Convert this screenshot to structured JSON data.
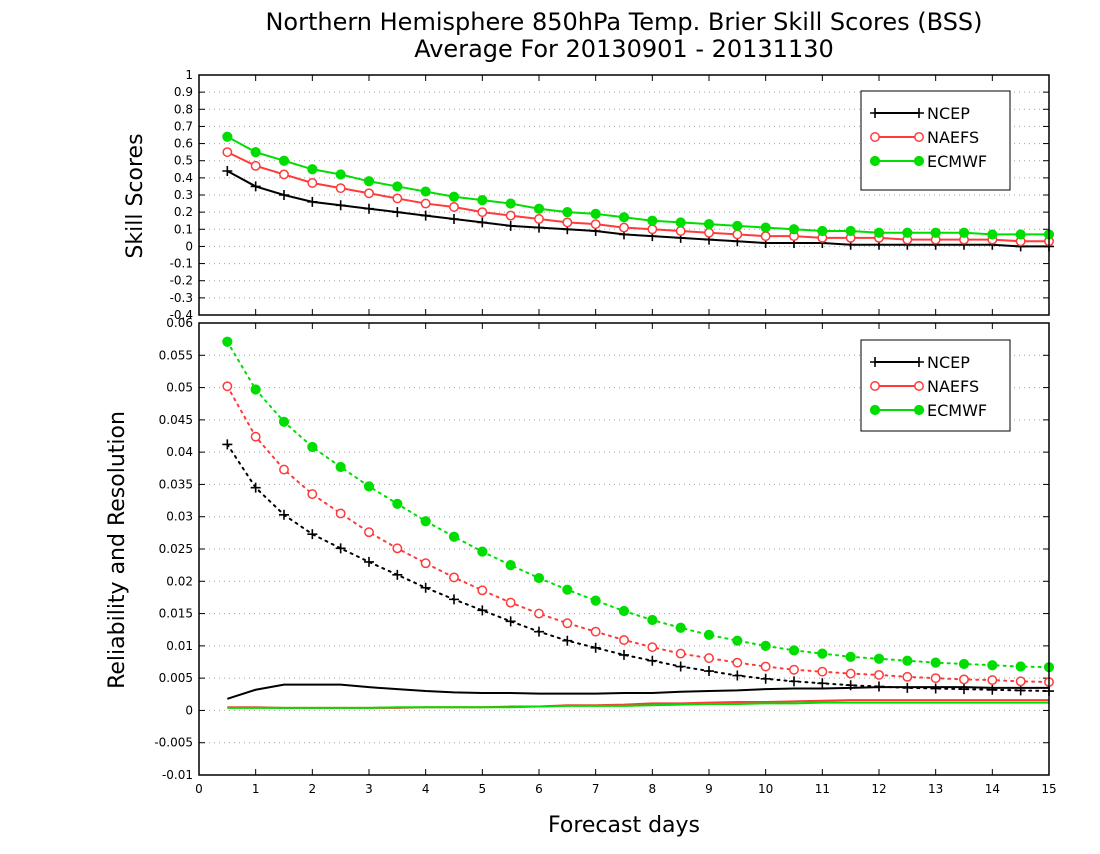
{
  "figure": {
    "title_line1": "Northern Hemisphere 850hPa Temp. Brier Skill Scores (BSS)",
    "title_line2": "Average For 20130901 - 20131130",
    "xlabel": "Forecast days"
  },
  "colors": {
    "NCEP": "#000000",
    "NAEFS": "#ff3a3a",
    "ECMWF": "#00dd00"
  },
  "chart_data": [
    {
      "type": "line",
      "ylabel": "Skill Scores",
      "xlim": [
        0,
        15
      ],
      "ylim": [
        -0.4,
        1
      ],
      "xticks": [
        0,
        1,
        2,
        3,
        4,
        5,
        6,
        7,
        8,
        9,
        10,
        11,
        12,
        13,
        14,
        15
      ],
      "yticks": [
        -0.4,
        -0.3,
        -0.2,
        -0.1,
        0,
        0.1,
        0.2,
        0.3,
        0.4,
        0.5,
        0.6,
        0.7,
        0.8,
        0.9,
        1
      ],
      "ytick_labels": [
        "-0.4",
        "-0.3",
        "-0.2",
        "-0.1",
        "0",
        "0.1",
        "0.2",
        "0.3",
        "0.4",
        "0.5",
        "0.6",
        "0.7",
        "0.8",
        "0.9",
        "1"
      ],
      "grid": "horizontal-dotted",
      "legend": "top-right",
      "x": [
        0.5,
        1,
        1.5,
        2,
        2.5,
        3,
        3.5,
        4,
        4.5,
        5,
        5.5,
        6,
        6.5,
        7,
        7.5,
        8,
        8.5,
        9,
        9.5,
        10,
        10.5,
        11,
        11.5,
        12,
        12.5,
        13,
        13.5,
        14,
        14.5,
        15
      ],
      "series": [
        {
          "name": "NCEP",
          "marker": "plus",
          "line": "solid",
          "values": [
            0.44,
            0.35,
            0.3,
            0.26,
            0.24,
            0.22,
            0.2,
            0.18,
            0.16,
            0.14,
            0.12,
            0.11,
            0.1,
            0.09,
            0.07,
            0.06,
            0.05,
            0.04,
            0.03,
            0.02,
            0.02,
            0.02,
            0.01,
            0.01,
            0.01,
            0.01,
            0.01,
            0.01,
            0.0,
            0.0
          ]
        },
        {
          "name": "NAEFS",
          "marker": "open-circle",
          "line": "solid",
          "values": [
            0.55,
            0.47,
            0.42,
            0.37,
            0.34,
            0.31,
            0.28,
            0.25,
            0.23,
            0.2,
            0.18,
            0.16,
            0.14,
            0.13,
            0.11,
            0.1,
            0.09,
            0.08,
            0.07,
            0.06,
            0.06,
            0.05,
            0.05,
            0.05,
            0.04,
            0.04,
            0.04,
            0.04,
            0.03,
            0.03
          ]
        },
        {
          "name": "ECMWF",
          "marker": "filled-circle",
          "line": "solid",
          "values": [
            0.64,
            0.55,
            0.5,
            0.45,
            0.42,
            0.38,
            0.35,
            0.32,
            0.29,
            0.27,
            0.25,
            0.22,
            0.2,
            0.19,
            0.17,
            0.15,
            0.14,
            0.13,
            0.12,
            0.11,
            0.1,
            0.09,
            0.09,
            0.08,
            0.08,
            0.08,
            0.08,
            0.07,
            0.07,
            0.07
          ]
        }
      ]
    },
    {
      "type": "line",
      "ylabel": "Reliability and Resolution",
      "xlim": [
        0,
        15
      ],
      "ylim": [
        -0.01,
        0.06
      ],
      "xticks": [
        0,
        1,
        2,
        3,
        4,
        5,
        6,
        7,
        8,
        9,
        10,
        11,
        12,
        13,
        14,
        15
      ],
      "yticks": [
        -0.01,
        -0.005,
        0,
        0.005,
        0.01,
        0.015,
        0.02,
        0.025,
        0.03,
        0.035,
        0.04,
        0.045,
        0.05,
        0.055,
        0.06
      ],
      "ytick_labels": [
        "-0.01",
        "-0.005",
        "0",
        "0.005",
        "0.01",
        "0.015",
        "0.02",
        "0.025",
        "0.03",
        "0.035",
        "0.04",
        "0.045",
        "0.05",
        "0.055",
        "0.06"
      ],
      "grid": "horizontal-dotted",
      "legend": "top-right",
      "x": [
        0.5,
        1,
        1.5,
        2,
        2.5,
        3,
        3.5,
        4,
        4.5,
        5,
        5.5,
        6,
        6.5,
        7,
        7.5,
        8,
        8.5,
        9,
        9.5,
        10,
        10.5,
        11,
        11.5,
        12,
        12.5,
        13,
        13.5,
        14,
        14.5,
        15
      ],
      "series": [
        {
          "name": "NCEP",
          "marker": "plus",
          "line": "dotted",
          "role": "resolution",
          "values": [
            0.0412,
            0.0345,
            0.0303,
            0.0273,
            0.0251,
            0.023,
            0.021,
            0.019,
            0.0172,
            0.0155,
            0.0138,
            0.0122,
            0.0108,
            0.0097,
            0.0086,
            0.0077,
            0.0068,
            0.0061,
            0.0054,
            0.0049,
            0.0045,
            0.0042,
            0.0039,
            0.0037,
            0.0035,
            0.0034,
            0.0033,
            0.0032,
            0.0031,
            0.003
          ]
        },
        {
          "name": "NAEFS",
          "marker": "open-circle",
          "line": "dotted",
          "role": "resolution",
          "values": [
            0.0502,
            0.0424,
            0.0373,
            0.0335,
            0.0305,
            0.0276,
            0.0251,
            0.0228,
            0.0206,
            0.0186,
            0.0167,
            0.015,
            0.0135,
            0.0122,
            0.0109,
            0.0098,
            0.0088,
            0.0081,
            0.0074,
            0.0068,
            0.0063,
            0.006,
            0.0057,
            0.0055,
            0.0052,
            0.005,
            0.0048,
            0.0047,
            0.0045,
            0.0044
          ]
        },
        {
          "name": "ECMWF",
          "marker": "filled-circle",
          "line": "dotted",
          "role": "resolution",
          "values": [
            0.0571,
            0.0497,
            0.0447,
            0.0408,
            0.0377,
            0.0347,
            0.032,
            0.0293,
            0.0269,
            0.0246,
            0.0225,
            0.0205,
            0.0187,
            0.017,
            0.0154,
            0.014,
            0.0128,
            0.0117,
            0.0108,
            0.01,
            0.0093,
            0.0088,
            0.0083,
            0.008,
            0.0077,
            0.0074,
            0.0072,
            0.007,
            0.0068,
            0.0067
          ]
        },
        {
          "name": "NCEP",
          "marker": "none",
          "line": "solid",
          "role": "reliability",
          "values": [
            0.0018,
            0.0032,
            0.004,
            0.004,
            0.004,
            0.0036,
            0.0033,
            0.003,
            0.0028,
            0.0027,
            0.0027,
            0.0026,
            0.0026,
            0.0026,
            0.0027,
            0.0027,
            0.0029,
            0.003,
            0.0031,
            0.0033,
            0.0034,
            0.0034,
            0.0035,
            0.0036,
            0.0036,
            0.0036,
            0.0036,
            0.0035,
            0.0035,
            0.0035
          ]
        },
        {
          "name": "NAEFS",
          "marker": "none",
          "line": "solid",
          "role": "reliability",
          "values": [
            0.0005,
            0.0005,
            0.0004,
            0.0004,
            0.0004,
            0.0004,
            0.0004,
            0.0005,
            0.0005,
            0.0005,
            0.0006,
            0.0006,
            0.0008,
            0.0008,
            0.0009,
            0.0011,
            0.0011,
            0.0012,
            0.0013,
            0.0013,
            0.0014,
            0.0015,
            0.0016,
            0.0016,
            0.0016,
            0.0016,
            0.0016,
            0.0016,
            0.0016,
            0.0016
          ]
        },
        {
          "name": "ECMWF",
          "marker": "none",
          "line": "solid",
          "role": "reliability",
          "values": [
            0.0004,
            0.0004,
            0.0004,
            0.0004,
            0.0004,
            0.0004,
            0.0005,
            0.0005,
            0.0005,
            0.0005,
            0.0005,
            0.0006,
            0.0007,
            0.0007,
            0.0007,
            0.0008,
            0.0009,
            0.001,
            0.001,
            0.0011,
            0.0011,
            0.0012,
            0.0012,
            0.0012,
            0.0012,
            0.0012,
            0.0012,
            0.0012,
            0.0012,
            0.0012
          ]
        }
      ]
    }
  ]
}
